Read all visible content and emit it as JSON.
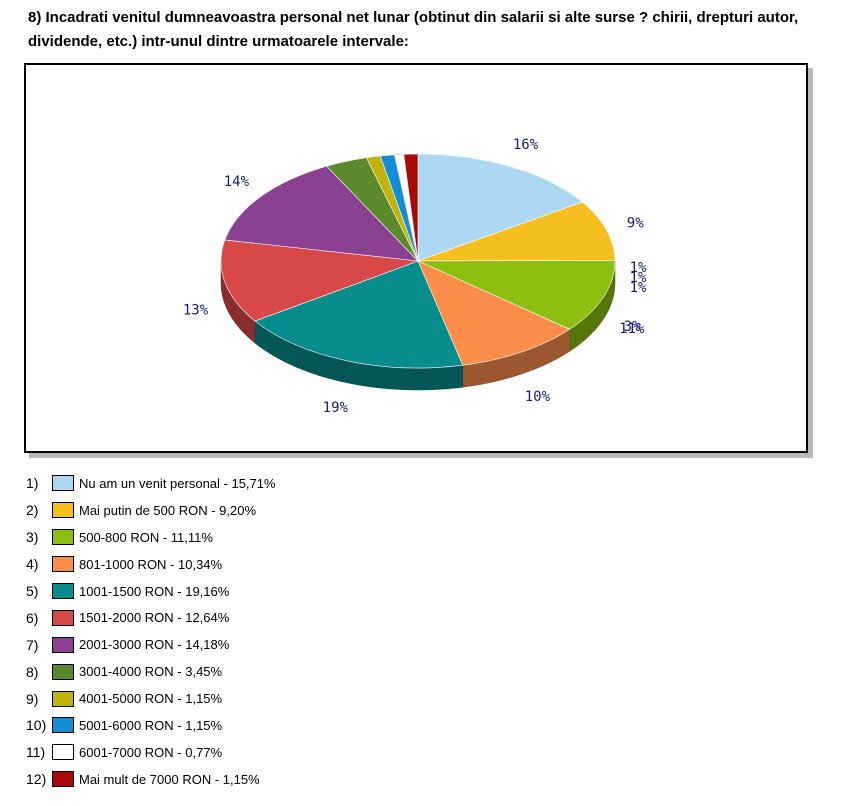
{
  "question": "8) Incadrati venitul dumneavoastra personal net lunar (obtinut din salarii si alte surse ? chirii, drepturi autor, dividende, etc.) intr-unul dintre urmatoarele intervale:",
  "chart_data": {
    "type": "pie",
    "title": "",
    "slices": [
      {
        "num": "1)",
        "label": "Nu am un venit personal - 15,71%",
        "value": 15.71,
        "pct_label": "16%",
        "color": "#add8f3"
      },
      {
        "num": "2)",
        "label": "Mai putin de 500 RON - 9,20%",
        "value": 9.2,
        "pct_label": "9%",
        "color": "#f5c01f"
      },
      {
        "num": "3)",
        "label": "500-800 RON - 11,11%",
        "value": 11.11,
        "pct_label": "11%",
        "color": "#8dbf10"
      },
      {
        "num": "4)",
        "label": "801-1000 RON - 10,34%",
        "value": 10.34,
        "pct_label": "10%",
        "color": "#fb8c4a"
      },
      {
        "num": "5)",
        "label": "1001-1500 RON - 19,16%",
        "value": 19.16,
        "pct_label": "19%",
        "color": "#088c8c"
      },
      {
        "num": "6)",
        "label": "1501-2000 RON - 12,64%",
        "value": 12.64,
        "pct_label": "13%",
        "color": "#d94848"
      },
      {
        "num": "7)",
        "label": "2001-3000 RON - 14,18%",
        "value": 14.18,
        "pct_label": "14%",
        "color": "#8b4192"
      },
      {
        "num": "8)",
        "label": "3001-4000 RON - 3,45%",
        "value": 3.45,
        "pct_label": "3%",
        "color": "#5c892c"
      },
      {
        "num": "9)",
        "label": "4001-5000 RON - 1,15%",
        "value": 1.15,
        "pct_label": "1%",
        "color": "#c1b20c"
      },
      {
        "num": "10)",
        "label": "5001-6000 RON - 1,15%",
        "value": 1.15,
        "pct_label": "1%",
        "color": "#138ed6"
      },
      {
        "num": "11)",
        "label": "6001-7000 RON - 0,77%",
        "value": 0.77,
        "pct_label": "",
        "color": "#ffffff"
      },
      {
        "num": "12)",
        "label": "Mai mult de 7000 RON - 1,15%",
        "value": 1.15,
        "pct_label": "1%",
        "color": "#a80a0a"
      }
    ]
  }
}
